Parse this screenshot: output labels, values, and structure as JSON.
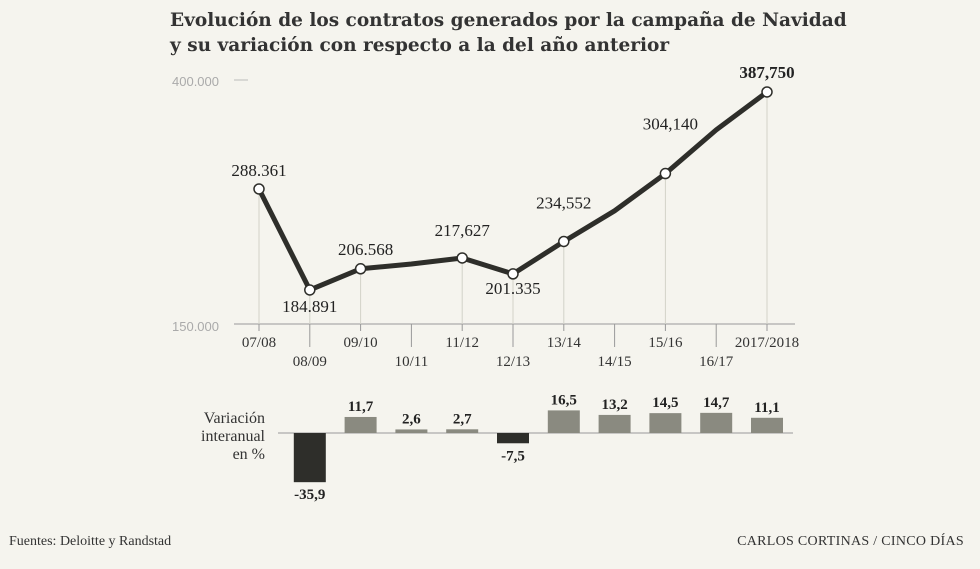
{
  "title_line1": "Evolución de los contratos generados por la campaña de Navidad",
  "title_line2": "y su variación con respecto a la del año anterior",
  "chart_data": [
    {
      "type": "line",
      "title": "Evolución de los contratos generados por la campaña de Navidad",
      "categories": [
        "07/08",
        "08/09",
        "09/10",
        "10/11",
        "11/12",
        "12/13",
        "13/14",
        "14/15",
        "15/16",
        "16/17",
        "2017/2018"
      ],
      "values": [
        288361,
        184891,
        206568,
        211500,
        217627,
        201335,
        234552,
        266000,
        304140,
        348900,
        387750
      ],
      "point_labels": [
        "288.361",
        "184.891",
        "206.568",
        null,
        "217,627",
        "201.335",
        "234,552",
        null,
        "304,140",
        null,
        "387,750"
      ],
      "marker_indices": [
        0,
        1,
        2,
        4,
        5,
        6,
        8,
        10
      ],
      "ylim": [
        150000,
        400000
      ],
      "ytick_labels": [
        "400.000",
        "150.000"
      ],
      "color": "#2e2e2a"
    },
    {
      "type": "bar",
      "title": "Variación interanual en %",
      "categories": [
        "08/09",
        "09/10",
        "10/11",
        "11/12",
        "12/13",
        "13/14",
        "14/15",
        "15/16",
        "16/17",
        "2017/2018"
      ],
      "values": [
        -35.9,
        11.7,
        2.6,
        2.7,
        -7.5,
        16.5,
        13.2,
        14.5,
        14.7,
        11.1
      ],
      "value_labels": [
        "-35,9",
        "11,7",
        "2,6",
        "2,7",
        "-7,5",
        "16,5",
        "13,2",
        "14,5",
        "14,7",
        "11,1"
      ],
      "positive_color": "#8a8a80",
      "negative_color": "#2e2e2a",
      "label_lines": [
        "Variación",
        "interanual",
        "en %"
      ]
    }
  ],
  "footer": {
    "source": "Fuentes: Deloitte y Randstad",
    "credit": "CARLOS CORTINAS / CINCO DÍAS"
  }
}
